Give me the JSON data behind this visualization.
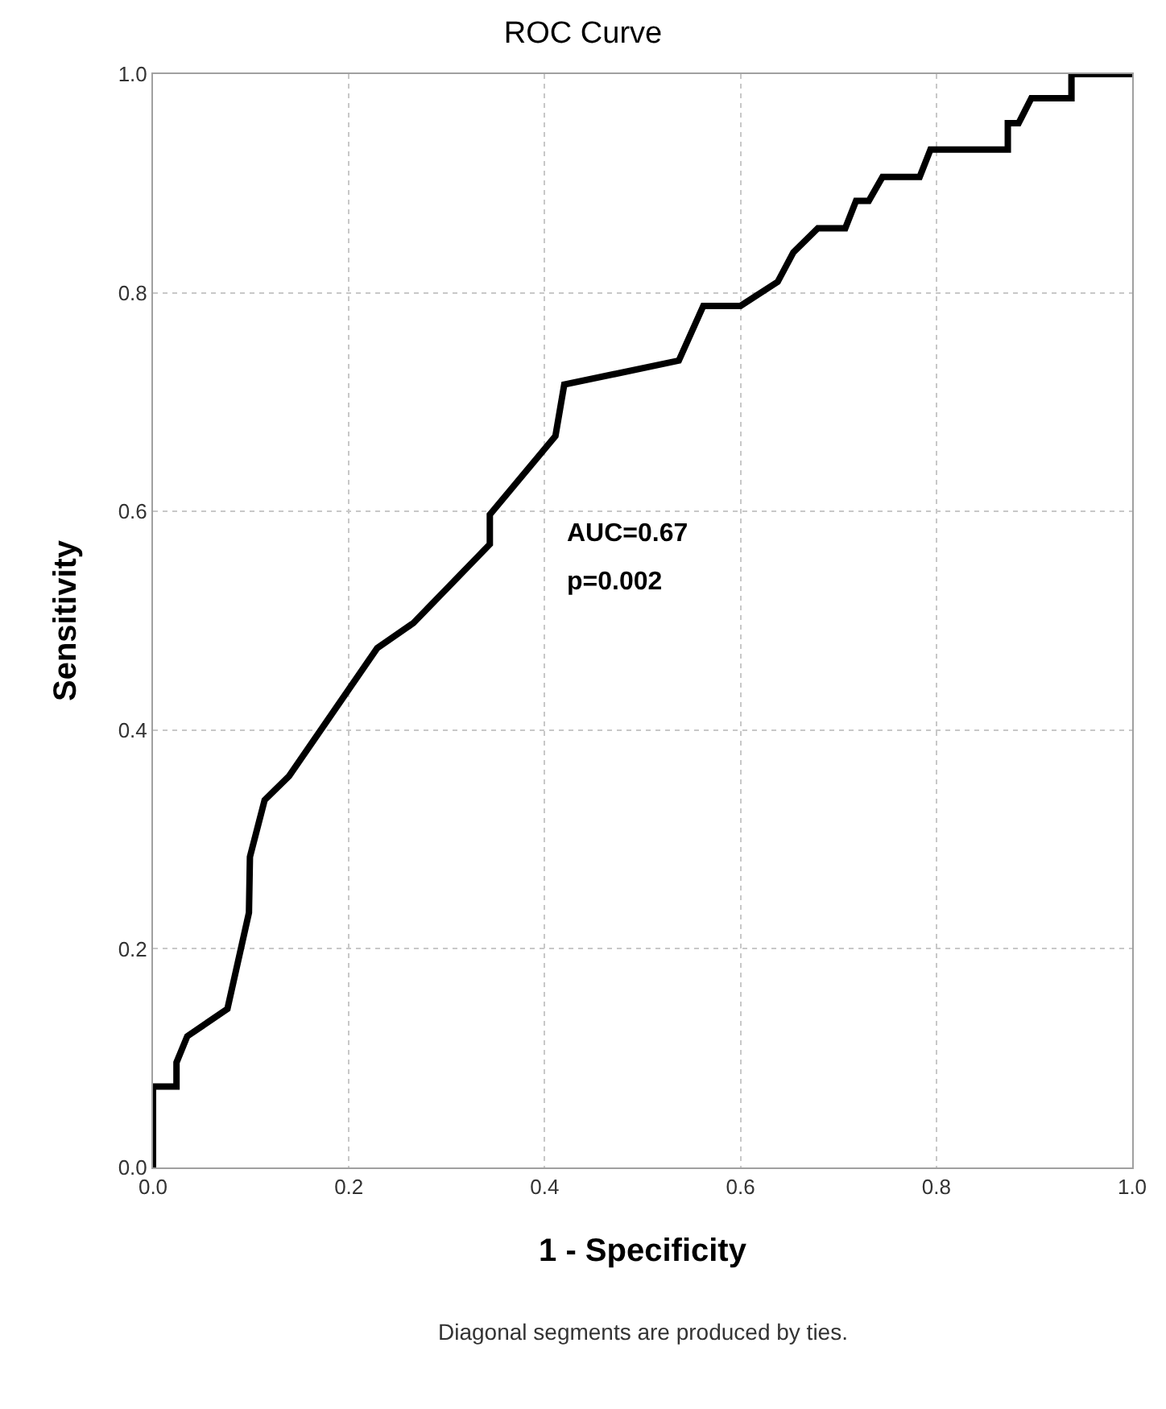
{
  "chart_data": {
    "type": "line",
    "title": "ROC Curve",
    "xlabel": "1 - Specificity",
    "ylabel": "Sensitivity",
    "x": [
      0,
      0,
      0.024,
      0.024,
      0.035,
      0.076,
      0.098,
      0.099,
      0.114,
      0.139,
      0.229,
      0.266,
      0.344,
      0.344,
      0.411,
      0.42,
      0.537,
      0.562,
      0.6,
      0.638,
      0.654,
      0.679,
      0.707,
      0.718,
      0.731,
      0.745,
      0.783,
      0.794,
      0.873,
      0.873,
      0.884,
      0.897,
      0.938,
      0.938,
      1
    ],
    "series": [
      {
        "color": "#000000",
        "values": [
          0,
          0.074,
          0.074,
          0.096,
          0.12,
          0.145,
          0.233,
          0.284,
          0.336,
          0.358,
          0.475,
          0.498,
          0.57,
          0.597,
          0.669,
          0.716,
          0.738,
          0.788,
          0.788,
          0.81,
          0.837,
          0.859,
          0.859,
          0.884,
          0.884,
          0.906,
          0.906,
          0.931,
          0.931,
          0.955,
          0.955,
          0.978,
          0.978,
          1,
          1
        ]
      }
    ],
    "xlim": [
      0,
      1
    ],
    "ylim": [
      0,
      1
    ],
    "xticks": [
      {
        "value": 0,
        "label": "0.0"
      },
      0.2,
      0.4,
      0.6,
      0.8,
      {
        "value": 1,
        "label": "1.0"
      }
    ],
    "yticks": [
      {
        "value": 0,
        "label": "0.0"
      },
      0.2,
      0.4,
      0.6,
      0.8,
      {
        "value": 1,
        "label": "1.0"
      }
    ],
    "grid": true,
    "legend": false,
    "marker": "none",
    "line_style": "solid",
    "annotations": [
      "AUC=0.67",
      "p=0.002",
      "Diagonal segments are produced by ties."
    ]
  }
}
